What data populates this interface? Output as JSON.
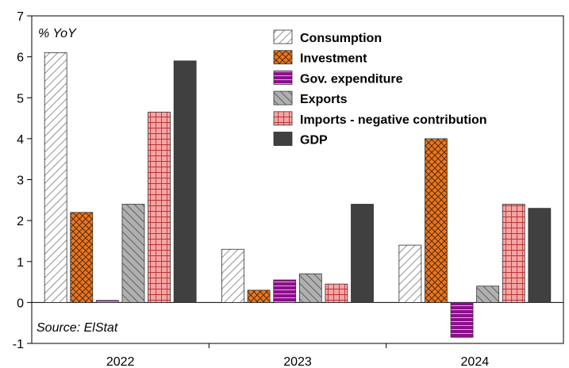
{
  "chart_data": {
    "type": "bar",
    "ylabel": "% YoY",
    "source_note": "Source: ElStat",
    "categories": [
      "2022",
      "2023",
      "2024"
    ],
    "ylim": [
      -1,
      7
    ],
    "yticks": [
      -1,
      0,
      1,
      2,
      3,
      4,
      5,
      6,
      7
    ],
    "grid": false,
    "legend_position": "top-right",
    "series": [
      {
        "name": "Consumption",
        "values": [
          6.1,
          1.3,
          1.4
        ],
        "color": "#ffffff",
        "pattern": "diagonal-hatch"
      },
      {
        "name": "Investment",
        "values": [
          2.2,
          0.3,
          4.0
        ],
        "color": "#e87722",
        "pattern": "crosshatch"
      },
      {
        "name": "Gov. expenditure",
        "values": [
          0.05,
          0.55,
          -0.85
        ],
        "color": "#8b0f8b",
        "pattern": "horizontal-lines"
      },
      {
        "name": "Exports",
        "values": [
          2.4,
          0.7,
          0.4
        ],
        "color": "#b0b0b0",
        "pattern": "diagonal-hatch"
      },
      {
        "name": "Imports - negative contribution",
        "values": [
          4.65,
          0.45,
          2.4
        ],
        "color": "#f4a6a6",
        "pattern": "grid"
      },
      {
        "name": "GDP",
        "values": [
          5.9,
          2.4,
          2.3
        ],
        "color": "#404040",
        "pattern": "solid"
      }
    ]
  }
}
